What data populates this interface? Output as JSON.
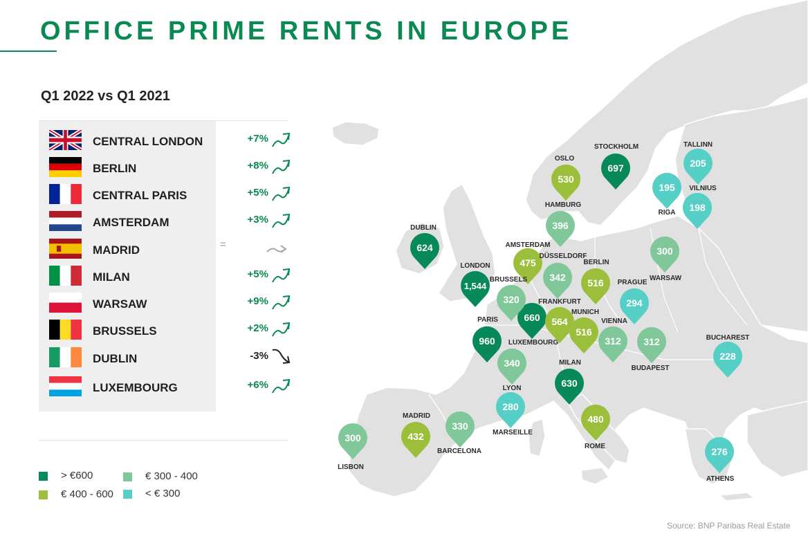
{
  "title": "OFFICE PRIME RENTS IN EUROPE",
  "subtitle": "Q1 2022 vs Q1 2021",
  "colors": {
    "dark_green": "#08895a",
    "lime": "#9cbf3b",
    "mid_green": "#80c79a",
    "teal": "#56cfc6",
    "title_green": "#0a8a52"
  },
  "changes": [
    {
      "city": "CENTRAL LONDON",
      "change": "+7%",
      "trend": "up",
      "flag": "uk"
    },
    {
      "city": "BERLIN",
      "change": "+8%",
      "trend": "up",
      "flag": "de"
    },
    {
      "city": "CENTRAL PARIS",
      "change": "+5%",
      "trend": "up",
      "flag": "fr"
    },
    {
      "city": "AMSTERDAM",
      "change": "+3%",
      "trend": "up",
      "flag": "nl"
    },
    {
      "city": "MADRID",
      "change": "=",
      "trend": "flat",
      "flag": "es"
    },
    {
      "city": "MILAN",
      "change": "+5%",
      "trend": "up",
      "flag": "it"
    },
    {
      "city": "WARSAW",
      "change": "+9%",
      "trend": "up",
      "flag": "pl"
    },
    {
      "city": "BRUSSELS",
      "change": "+2%",
      "trend": "up",
      "flag": "be"
    },
    {
      "city": "DUBLIN",
      "change": "-3%",
      "trend": "down",
      "flag": "ie"
    },
    {
      "city": "LUXEMBOURG",
      "change": "+6%",
      "trend": "up",
      "flag": "lu"
    }
  ],
  "legend": [
    {
      "label": "> €600",
      "category": "dark"
    },
    {
      "label": "€ 400 - 600",
      "category": "lime"
    },
    {
      "label": "€ 300 - 400",
      "category": "mid"
    },
    {
      "label": "< € 300",
      "category": "teal"
    }
  ],
  "markers": [
    {
      "city": "DUBLIN",
      "value": "624",
      "category": "dark"
    },
    {
      "city": "LONDON",
      "value": "1,544",
      "category": "dark"
    },
    {
      "city": "PARIS",
      "value": "960",
      "category": "dark"
    },
    {
      "city": "LUXEMBOURG",
      "value": "660",
      "category": "dark"
    },
    {
      "city": "STOCKHOLM",
      "value": "697",
      "category": "dark"
    },
    {
      "city": "MILAN",
      "value": "630",
      "category": "dark"
    },
    {
      "city": "OSLO",
      "value": "530",
      "category": "lime"
    },
    {
      "city": "AMSTERDAM",
      "value": "475",
      "category": "lime"
    },
    {
      "city": "BERLIN",
      "value": "516",
      "category": "lime"
    },
    {
      "city": "FRANKFURT",
      "value": "564",
      "category": "lime"
    },
    {
      "city": "MUNICH",
      "value": "516",
      "category": "lime"
    },
    {
      "city": "MADRID",
      "value": "432",
      "category": "lime"
    },
    {
      "city": "ROME",
      "value": "480",
      "category": "lime"
    },
    {
      "city": "HAMBURG",
      "value": "396",
      "category": "mid"
    },
    {
      "city": "DÜSSELDORF",
      "value": "342",
      "category": "mid"
    },
    {
      "city": "BRUSSELS",
      "value": "320",
      "category": "mid"
    },
    {
      "city": "WARSAW",
      "value": "300",
      "category": "mid"
    },
    {
      "city": "VIENNA",
      "value": "312",
      "category": "mid"
    },
    {
      "city": "BUDAPEST",
      "value": "312",
      "category": "mid"
    },
    {
      "city": "LYON",
      "value": "340",
      "category": "mid"
    },
    {
      "city": "BARCELONA",
      "value": "330",
      "category": "mid"
    },
    {
      "city": "LISBON",
      "value": "300",
      "category": "mid"
    },
    {
      "city": "TALLINN",
      "value": "205",
      "category": "teal"
    },
    {
      "city": "RIGA",
      "value": "195",
      "category": "teal"
    },
    {
      "city": "VILNIUS",
      "value": "198",
      "category": "teal"
    },
    {
      "city": "PRAGUE",
      "value": "294",
      "category": "teal"
    },
    {
      "city": "BUCHAREST",
      "value": "228",
      "category": "teal"
    },
    {
      "city": "MARSEILLE",
      "value": "280",
      "category": "teal"
    },
    {
      "city": "ATHENS",
      "value": "276",
      "category": "teal"
    }
  ],
  "source": "Source: BNP Paribas Real Estate"
}
